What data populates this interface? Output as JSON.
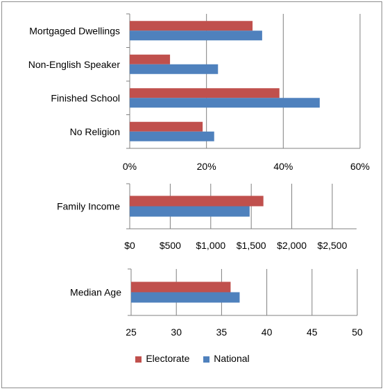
{
  "colors": {
    "electorate": "#c0504d",
    "national": "#4f81bd",
    "grid": "#7f7f7f",
    "axis": "#808080"
  },
  "legend": {
    "position": "bottom",
    "items": [
      {
        "name": "Electorate",
        "color": "#c0504d"
      },
      {
        "name": "National",
        "color": "#4f81bd"
      }
    ]
  },
  "chart_data": [
    {
      "type": "bar",
      "orientation": "horizontal",
      "categories": [
        "Mortgaged Dwellings",
        "Non-English Speaker",
        "Finished School",
        "No Religion"
      ],
      "series": [
        {
          "name": "Electorate",
          "values": [
            0.32,
            0.105,
            0.39,
            0.19
          ]
        },
        {
          "name": "National",
          "values": [
            0.345,
            0.23,
            0.495,
            0.22
          ]
        }
      ],
      "xlim": [
        0,
        0.6
      ],
      "ticks": [
        0,
        0.2,
        0.4,
        0.6
      ],
      "tick_labels": [
        "0%",
        "20%",
        "40%",
        "60%"
      ],
      "grid": true
    },
    {
      "type": "bar",
      "orientation": "horizontal",
      "categories": [
        "Family Income"
      ],
      "series": [
        {
          "name": "Electorate",
          "values": [
            1650
          ]
        },
        {
          "name": "National",
          "values": [
            1480
          ]
        }
      ],
      "xlim": [
        0,
        2800
      ],
      "ticks": [
        0,
        500,
        1000,
        1500,
        2000,
        2500
      ],
      "tick_labels": [
        "$0",
        "$500",
        "$1,000",
        "$1,500",
        "$2,000",
        "$2,500"
      ],
      "grid": true
    },
    {
      "type": "bar",
      "orientation": "horizontal",
      "categories": [
        "Median Age"
      ],
      "series": [
        {
          "name": "Electorate",
          "values": [
            36
          ]
        },
        {
          "name": "National",
          "values": [
            37
          ]
        }
      ],
      "xlim": [
        25,
        50
      ],
      "ticks": [
        25,
        30,
        35,
        40,
        45,
        50
      ],
      "tick_labels": [
        "25",
        "30",
        "35",
        "40",
        "45",
        "50"
      ],
      "grid": true
    }
  ]
}
